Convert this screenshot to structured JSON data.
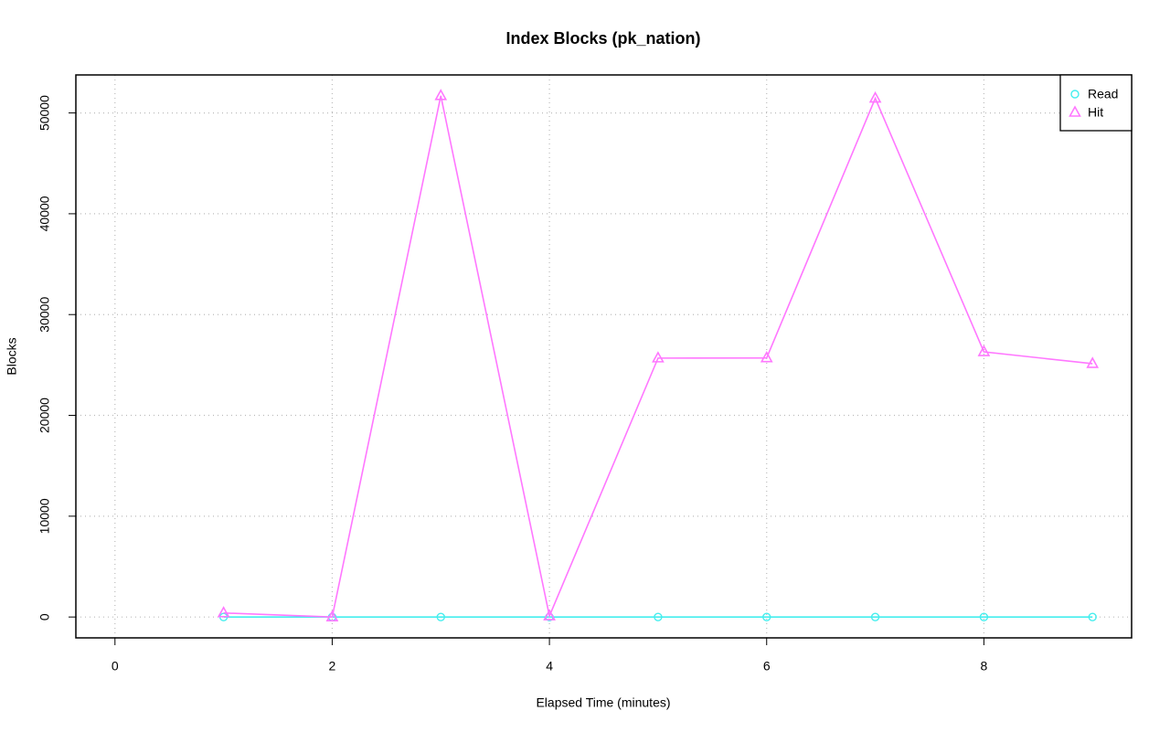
{
  "chart_data": {
    "type": "line",
    "title": "Index Blocks (pk_nation)",
    "x_label": "Elapsed Time (minutes)",
    "y_label": "Blocks",
    "x": [
      1,
      2,
      3,
      4,
      5,
      6,
      7,
      8,
      9
    ],
    "series": [
      {
        "name": "Read",
        "color": "#44eeee",
        "marker": "circle",
        "values": [
          0,
          0,
          0,
          0,
          0,
          0,
          0,
          0,
          0
        ]
      },
      {
        "name": "Hit",
        "color": "#ff77ff",
        "marker": "triangle",
        "values": [
          400,
          0,
          51700,
          100,
          25680,
          25700,
          51450,
          26300,
          25130
        ]
      }
    ],
    "xlim": [
      -0.36,
      9.36
    ],
    "ylim": [
      -2070,
      53770
    ],
    "xticks": [
      0,
      2,
      4,
      6,
      8
    ],
    "yticks": [
      0,
      10000,
      20000,
      30000,
      40000,
      50000
    ],
    "grid": true,
    "legend": "top-right"
  }
}
